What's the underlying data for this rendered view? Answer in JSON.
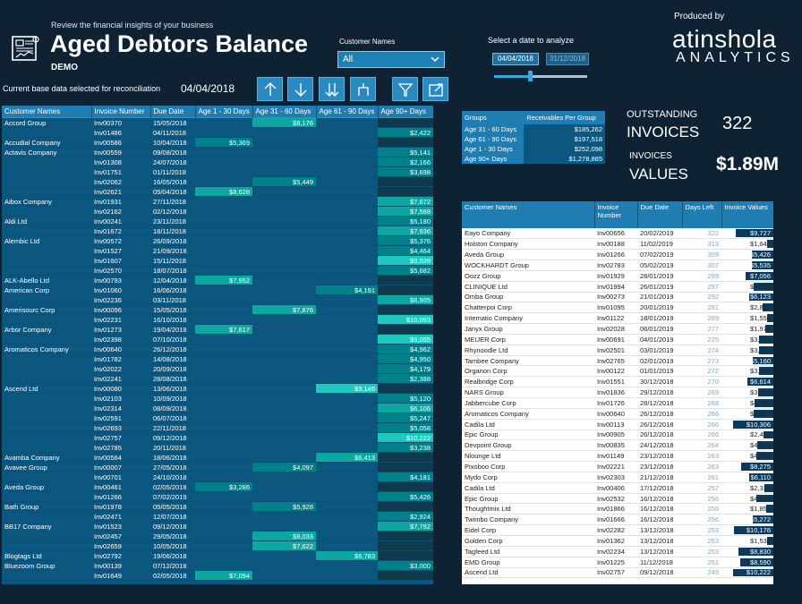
{
  "header": {
    "tagline": "Review the financial insights of your business",
    "title": "Aged Debtors Balance",
    "subtitle": "DEMO",
    "produced_by": "Produced by",
    "brand_line1": "atinshola",
    "brand_line2": "ANALYTICS"
  },
  "filters": {
    "customer_label": "Customer Names",
    "customer_value": "All",
    "date_label": "Select a date to analyze",
    "date_from": "04/04/2018",
    "date_to": "31/12/2018",
    "slider_fraction": 0.4
  },
  "base": {
    "text": "Current base data selected for reconciliation",
    "date": "04/04/2018"
  },
  "toolbar": {
    "icons": [
      "drill-up-icon",
      "drill-down-icon",
      "expand-all-down-icon",
      "drill-hierarchy-icon",
      "filter-icon",
      "focus-mode-icon"
    ]
  },
  "debt_table": {
    "headers": [
      "Customer Names",
      "Invoice Number",
      "Due Date",
      "Age 1 - 30 Days",
      "Age 31 - 60 Days",
      "Age 61 - 90 Days",
      "Age 90+ Days"
    ],
    "rows": [
      [
        "Accord Group",
        "Inv00370",
        "15/05/2018",
        "",
        "$8,176",
        "",
        ""
      ],
      [
        "",
        "Inv01486",
        "04/11/2018",
        "",
        "",
        "",
        "$2,422"
      ],
      [
        "Accudial Company",
        "Inv00586",
        "10/04/2018",
        "$5,369",
        "",
        "",
        ""
      ],
      [
        "Actavis Company",
        "Inv00559",
        "09/08/2018",
        "",
        "",
        "",
        "$5,141"
      ],
      [
        "",
        "Inv01308",
        "24/07/2018",
        "",
        "",
        "",
        "$2,166"
      ],
      [
        "",
        "Inv01751",
        "01/11/2018",
        "",
        "",
        "",
        "$3,698"
      ],
      [
        "",
        "Inv02062",
        "16/05/2018",
        "",
        "$5,449",
        "",
        ""
      ],
      [
        "",
        "Inv02621",
        "05/04/2018",
        "$8,628",
        "",
        "",
        ""
      ],
      [
        "Aibox Company",
        "Inv01931",
        "27/11/2018",
        "",
        "",
        "",
        "$7,672"
      ],
      [
        "",
        "Inv02162",
        "02/12/2018",
        "",
        "",
        "",
        "$7,588"
      ],
      [
        "Aldi Ltd",
        "Inv00241",
        "23/11/2018",
        "",
        "",
        "",
        "$5,180"
      ],
      [
        "",
        "Inv01672",
        "18/11/2018",
        "",
        "",
        "",
        "$7,936"
      ],
      [
        "Alembic Ltd",
        "Inv00572",
        "26/09/2018",
        "",
        "",
        "",
        "$5,376"
      ],
      [
        "",
        "Inv01527",
        "21/09/2018",
        "",
        "",
        "",
        "$4,464"
      ],
      [
        "",
        "Inv01607",
        "15/11/2018",
        "",
        "",
        "",
        "$9,539"
      ],
      [
        "",
        "Inv02570",
        "18/07/2018",
        "",
        "",
        "",
        "$5,682"
      ],
      [
        "ALK-Abello Ltd",
        "Inv00793",
        "12/04/2018",
        "$7,952",
        "",
        "",
        ""
      ],
      [
        "American Corp",
        "Inv01060",
        "16/06/2018",
        "",
        "",
        "$4,191",
        ""
      ],
      [
        "",
        "Inv02236",
        "03/11/2018",
        "",
        "",
        "",
        "$6,905"
      ],
      [
        "Amerisourc Corp",
        "Inv00096",
        "15/05/2018",
        "",
        "$7,876",
        "",
        ""
      ],
      [
        "",
        "Inv02231",
        "16/10/2018",
        "",
        "",
        "",
        "$10,093"
      ],
      [
        "Arbor Company",
        "Inv01273",
        "19/04/2018",
        "$7,617",
        "",
        "",
        ""
      ],
      [
        "",
        "Inv02398",
        "07/10/2018",
        "",
        "",
        "",
        "$9,055"
      ],
      [
        "Aromaticos Company",
        "Inv00640",
        "26/12/2018",
        "",
        "",
        "",
        "$4,962"
      ],
      [
        "",
        "Inv01782",
        "14/08/2018",
        "",
        "",
        "",
        "$4,950"
      ],
      [
        "",
        "Inv02022",
        "20/09/2018",
        "",
        "",
        "",
        "$4,179"
      ],
      [
        "",
        "Inv02241",
        "28/08/2018",
        "",
        "",
        "",
        "$2,388"
      ],
      [
        "Ascend Ltd",
        "Inv00080",
        "13/06/2018",
        "",
        "",
        "$9,146",
        ""
      ],
      [
        "",
        "Inv02103",
        "10/09/2018",
        "",
        "",
        "",
        "$5,120"
      ],
      [
        "",
        "Inv02314",
        "08/09/2018",
        "",
        "",
        "",
        "$6,106"
      ],
      [
        "",
        "Inv02591",
        "06/07/2018",
        "",
        "",
        "",
        "$5,247"
      ],
      [
        "",
        "Inv02693",
        "22/11/2018",
        "",
        "",
        "",
        "$5,058"
      ],
      [
        "",
        "Inv02757",
        "09/12/2018",
        "",
        "",
        "",
        "$10,222"
      ],
      [
        "",
        "Inv02785",
        "20/11/2018",
        "",
        "",
        "",
        "$3,238"
      ],
      [
        "Avamba Company",
        "Inv00564",
        "18/06/2018",
        "",
        "",
        "$6,413",
        ""
      ],
      [
        "Avavee Group",
        "Inv00007",
        "27/05/2018",
        "",
        "$4,097",
        "",
        ""
      ],
      [
        "",
        "Inv00701",
        "24/10/2018",
        "",
        "",
        "",
        "$4,181"
      ],
      [
        "Aveda Group",
        "Inv00461",
        "02/05/2018",
        "$3,286",
        "",
        "",
        ""
      ],
      [
        "",
        "Inv01266",
        "07/02/2019",
        "",
        "",
        "",
        "$5,426"
      ],
      [
        "Bath Group",
        "Inv01978",
        "05/05/2018",
        "",
        "$5,928",
        "",
        ""
      ],
      [
        "",
        "Inv02471",
        "12/07/2018",
        "",
        "",
        "",
        "$2,924"
      ],
      [
        "BB17 Company",
        "Inv01523",
        "09/12/2018",
        "",
        "",
        "",
        "$7,792"
      ],
      [
        "",
        "Inv02457",
        "29/05/2018",
        "",
        "$8,033",
        "",
        ""
      ],
      [
        "",
        "Inv02659",
        "10/05/2018",
        "",
        "$7,622",
        "",
        ""
      ],
      [
        "Blogtags Ltd",
        "Inv02792",
        "19/06/2018",
        "",
        "",
        "$6,783",
        ""
      ],
      [
        "Bluezoom Group",
        "Inv00139",
        "07/12/2018",
        "",
        "",
        "",
        "$3,000"
      ],
      [
        "",
        "Inv01649",
        "02/05/2018",
        "$7,094",
        "",
        "",
        ""
      ]
    ]
  },
  "groups": {
    "headers": [
      "Groups",
      "Receivables Per Group"
    ],
    "rows": [
      [
        "Age 31 - 60 Days",
        "$185,262"
      ],
      [
        "Age 61 - 90 Days",
        "$197,518"
      ],
      [
        "Age 1 - 30 Days",
        "$252,098"
      ],
      [
        "Age 90+ Days",
        "$1,278,885"
      ]
    ]
  },
  "kpis": {
    "outstanding_label1": "OUTSTANDING",
    "outstanding_label2": "INVOICES",
    "outstanding_value": "322",
    "invoices_label1": "INVOICES",
    "invoices_label2": "VALUES",
    "invoices_value": "$1.89M"
  },
  "inv_table": {
    "headers": [
      "Customer Names",
      "Invoice Number",
      "Due Date",
      "Days Left",
      "Invoice Values"
    ],
    "rows": [
      [
        "Eayo Company",
        "Inv00656",
        "20/02/2019",
        "322",
        "$9,727"
      ],
      [
        "Holston Company",
        "Inv00188",
        "11/02/2019",
        "313",
        "$1,647"
      ],
      [
        "Aveda Group",
        "Inv01266",
        "07/02/2019",
        "309",
        "$5,426"
      ],
      [
        "WOCKHARDT Group",
        "Inv02783",
        "05/02/2019",
        "307",
        "$5,535"
      ],
      [
        "Oozz Group",
        "Inv01929",
        "28/01/2019",
        "299",
        "$7,056"
      ],
      [
        "CLINIQUE Ltd",
        "Inv01994",
        "26/01/2019",
        "297",
        "$4,938"
      ],
      [
        "Omba Group",
        "Inv00273",
        "21/01/2019",
        "292",
        "$6,123"
      ],
      [
        "Chatterpoi Corp",
        "Inv01095",
        "20/01/2019",
        "291",
        "$2,822"
      ],
      [
        "Intematio Company",
        "Inv01122",
        "18/01/2019",
        "289",
        "$1,554"
      ],
      [
        "Janyx Group",
        "Inv02028",
        "06/01/2019",
        "277",
        "$1,973"
      ],
      [
        "MEIJER Corp",
        "Inv00691",
        "04/01/2019",
        "275",
        "$3,774"
      ],
      [
        "Rhynoodle Ltd",
        "Inv02501",
        "03/01/2019",
        "274",
        "$3,746"
      ],
      [
        "Tambee Company",
        "Inv02765",
        "02/01/2019",
        "273",
        "$5,160"
      ],
      [
        "Organon Corp",
        "Inv00122",
        "01/01/2019",
        "272",
        "$3,630"
      ],
      [
        "Realbridge Corp",
        "Inv01551",
        "30/12/2018",
        "270",
        "$6,614"
      ],
      [
        "NARS Group",
        "Inv01836",
        "29/12/2018",
        "269",
        "$3,974"
      ],
      [
        "Jabbercube Corp",
        "Inv01726",
        "28/12/2018",
        "268",
        "$4,732"
      ],
      [
        "Aromaticos Company",
        "Inv00640",
        "26/12/2018",
        "266",
        "$4,962"
      ],
      [
        "Cadila Ltd",
        "Inv00113",
        "26/12/2018",
        "266",
        "$10,306"
      ],
      [
        "Epic Group",
        "Inv00905",
        "26/12/2018",
        "266",
        "$2,475"
      ],
      [
        "Devpoint Group",
        "Inv00835",
        "24/12/2018",
        "264",
        "$4,025"
      ],
      [
        "Nlounge Ltd",
        "Inv01149",
        "23/12/2018",
        "263",
        "$4,266"
      ],
      [
        "Pixoboo Corp",
        "Inv02221",
        "23/12/2018",
        "263",
        "$8,275"
      ],
      [
        "Mydo Corp",
        "Inv02303",
        "21/12/2018",
        "261",
        "$6,110"
      ],
      [
        "Cadila Ltd",
        "Inv00406",
        "17/12/2018",
        "257",
        "$2,337"
      ],
      [
        "Epic Group",
        "Inv02532",
        "16/12/2018",
        "256",
        "$4,241"
      ],
      [
        "Thoughtmix Ltd",
        "Inv01866",
        "16/12/2018",
        "256",
        "$1,851"
      ],
      [
        "Twimbo Company",
        "Inv01666",
        "16/12/2018",
        "256",
        "$5,272"
      ],
      [
        "Eidel Corp",
        "Inv02282",
        "13/12/2018",
        "253",
        "$10,176"
      ],
      [
        "Golden Corp",
        "Inv01362",
        "13/12/2018",
        "253",
        "$1,539"
      ],
      [
        "Tagfeed Ltd",
        "Inv02234",
        "13/12/2018",
        "253",
        "$8,830"
      ],
      [
        "EMD Group",
        "Inv01225",
        "11/12/2018",
        "251",
        "$8,590"
      ],
      [
        "Ascend Ltd",
        "Inv02757",
        "09/12/2018",
        "249",
        "$10,222"
      ]
    ]
  },
  "colors": {
    "background": "#0e2233",
    "table_blue": "#0b5780",
    "header_blue": "#1f80b3",
    "teal_high": "#1fc8bd",
    "teal_mid": "#0ba7a0",
    "teal_low": "#00818a",
    "bar_navy": "#0b3a5c"
  }
}
